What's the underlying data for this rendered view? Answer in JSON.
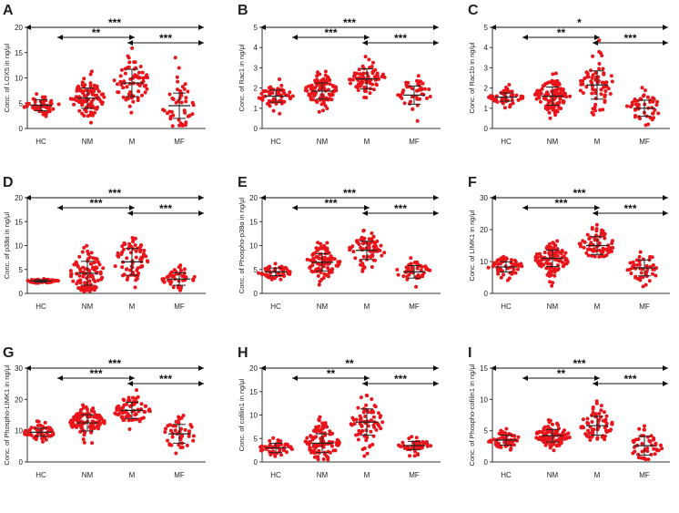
{
  "figure": {
    "colors": {
      "dot": "#e8151b",
      "axis": "#333333",
      "text": "#222222",
      "bracket": "#111111"
    }
  },
  "chart_data": [
    {
      "panel": "A",
      "type": "scatter",
      "title": "",
      "ylabel": "Conc. of LOX5 in ng/μl",
      "xlabel": "",
      "categories": [
        "HC",
        "NM",
        "M",
        "MF"
      ],
      "ylim": [
        0,
        20
      ],
      "yticks": [
        "0",
        "5",
        "10",
        "15",
        "20"
      ],
      "series": [
        {
          "name": "HC",
          "n": 55,
          "mean": 4.6,
          "sd": 1.1
        },
        {
          "name": "NM",
          "n": 100,
          "mean": 6.0,
          "sd": 2.0
        },
        {
          "name": "M",
          "n": 70,
          "mean": 9.0,
          "sd": 2.7
        },
        {
          "name": "MF",
          "n": 45,
          "mean": 4.5,
          "sd": 2.5
        }
      ],
      "comparisons": [
        {
          "from": "HC",
          "to": "MF",
          "label": "***"
        },
        {
          "from": "NM",
          "to": "M",
          "label": "**"
        },
        {
          "from": "M",
          "to": "MF",
          "label": "***"
        }
      ]
    },
    {
      "panel": "B",
      "type": "scatter",
      "title": "",
      "ylabel": "Conc. of Rac1 in ng/μl",
      "xlabel": "",
      "categories": [
        "HC",
        "NM",
        "M",
        "MF"
      ],
      "ylim": [
        0,
        5
      ],
      "yticks": [
        "0",
        "1",
        "2",
        "3",
        "4",
        "5"
      ],
      "series": [
        {
          "name": "HC",
          "n": 55,
          "mean": 1.6,
          "sd": 0.3
        },
        {
          "name": "NM",
          "n": 100,
          "mean": 1.85,
          "sd": 0.4
        },
        {
          "name": "M",
          "n": 70,
          "mean": 2.45,
          "sd": 0.5
        },
        {
          "name": "MF",
          "n": 45,
          "mean": 1.65,
          "sd": 0.45
        }
      ],
      "comparisons": [
        {
          "from": "HC",
          "to": "MF",
          "label": "***"
        },
        {
          "from": "NM",
          "to": "M",
          "label": "***"
        },
        {
          "from": "M",
          "to": "MF",
          "label": "***"
        }
      ]
    },
    {
      "panel": "C",
      "type": "scatter",
      "title": "",
      "ylabel": "Conc. of Rac1b in ng/μl",
      "xlabel": "",
      "categories": [
        "HC",
        "NM",
        "M",
        "MF"
      ],
      "ylim": [
        0,
        5
      ],
      "yticks": [
        "0",
        "1",
        "2",
        "3",
        "4",
        "5"
      ],
      "series": [
        {
          "name": "HC",
          "n": 55,
          "mean": 1.55,
          "sd": 0.2
        },
        {
          "name": "NM",
          "n": 100,
          "mean": 1.6,
          "sd": 0.45
        },
        {
          "name": "M",
          "n": 70,
          "mean": 2.15,
          "sd": 0.7
        },
        {
          "name": "MF",
          "n": 45,
          "mean": 1.0,
          "sd": 0.4
        }
      ],
      "comparisons": [
        {
          "from": "HC",
          "to": "MF",
          "label": "*"
        },
        {
          "from": "NM",
          "to": "M",
          "label": "**"
        },
        {
          "from": "M",
          "to": "MF",
          "label": "***"
        }
      ]
    },
    {
      "panel": "D",
      "type": "scatter",
      "title": "",
      "ylabel": "Conc. of p38α in ng/μl",
      "xlabel": "",
      "categories": [
        "HC",
        "NM",
        "M",
        "MF"
      ],
      "ylim": [
        0,
        20
      ],
      "yticks": [
        "0",
        "5",
        "10",
        "15",
        "20"
      ],
      "series": [
        {
          "name": "HC",
          "n": 55,
          "mean": 2.6,
          "sd": 0.25
        },
        {
          "name": "NM",
          "n": 100,
          "mean": 4.2,
          "sd": 2.5
        },
        {
          "name": "M",
          "n": 70,
          "mean": 6.6,
          "sd": 2.8
        },
        {
          "name": "MF",
          "n": 45,
          "mean": 3.0,
          "sd": 1.3
        }
      ],
      "comparisons": [
        {
          "from": "HC",
          "to": "MF",
          "label": "***"
        },
        {
          "from": "NM",
          "to": "M",
          "label": "***"
        },
        {
          "from": "M",
          "to": "MF",
          "label": "***"
        }
      ]
    },
    {
      "panel": "E",
      "type": "scatter",
      "title": "",
      "ylabel": "Conc. of Phospho-p38α in ng/μl",
      "xlabel": "",
      "categories": [
        "HC",
        "NM",
        "M",
        "MF"
      ],
      "ylim": [
        0,
        20
      ],
      "yticks": [
        "0",
        "5",
        "10",
        "15",
        "20"
      ],
      "series": [
        {
          "name": "HC",
          "n": 55,
          "mean": 4.5,
          "sd": 0.8
        },
        {
          "name": "NM",
          "n": 100,
          "mean": 6.5,
          "sd": 1.8
        },
        {
          "name": "M",
          "n": 70,
          "mean": 9.0,
          "sd": 1.9
        },
        {
          "name": "MF",
          "n": 45,
          "mean": 4.5,
          "sd": 1.3
        }
      ],
      "comparisons": [
        {
          "from": "HC",
          "to": "MF",
          "label": "***"
        },
        {
          "from": "NM",
          "to": "M",
          "label": "***"
        },
        {
          "from": "M",
          "to": "MF",
          "label": "***"
        }
      ]
    },
    {
      "panel": "F",
      "type": "scatter",
      "title": "",
      "ylabel": "Conc. of LIMK1 in ng/μl",
      "xlabel": "",
      "categories": [
        "HC",
        "NM",
        "M",
        "MF"
      ],
      "ylim": [
        0,
        30
      ],
      "yticks": [
        "0",
        "10",
        "20",
        "30"
      ],
      "series": [
        {
          "name": "HC",
          "n": 55,
          "mean": 8.3,
          "sd": 1.6
        },
        {
          "name": "NM",
          "n": 100,
          "mean": 11.0,
          "sd": 2.6
        },
        {
          "name": "M",
          "n": 70,
          "mean": 15.0,
          "sd": 2.8
        },
        {
          "name": "MF",
          "n": 45,
          "mean": 8.0,
          "sd": 2.5
        }
      ],
      "comparisons": [
        {
          "from": "HC",
          "to": "MF",
          "label": "***"
        },
        {
          "from": "NM",
          "to": "M",
          "label": "***"
        },
        {
          "from": "M",
          "to": "MF",
          "label": "***"
        }
      ]
    },
    {
      "panel": "G",
      "type": "scatter",
      "title": "",
      "ylabel": "Conc. of Phospho-LIMK1 in ng/μl",
      "xlabel": "",
      "categories": [
        "HC",
        "NM",
        "M",
        "MF"
      ],
      "ylim": [
        0,
        30
      ],
      "yticks": [
        "0",
        "10",
        "20",
        "30"
      ],
      "series": [
        {
          "name": "HC",
          "n": 55,
          "mean": 9.5,
          "sd": 1.3
        },
        {
          "name": "NM",
          "n": 100,
          "mean": 12.5,
          "sd": 2.6
        },
        {
          "name": "M",
          "n": 70,
          "mean": 16.5,
          "sd": 2.6
        },
        {
          "name": "MF",
          "n": 45,
          "mean": 9.0,
          "sd": 3.0
        }
      ],
      "comparisons": [
        {
          "from": "HC",
          "to": "MF",
          "label": "***"
        },
        {
          "from": "NM",
          "to": "M",
          "label": "***"
        },
        {
          "from": "M",
          "to": "MF",
          "label": "***"
        }
      ]
    },
    {
      "panel": "H",
      "type": "scatter",
      "title": "",
      "ylabel": "Conc. of cofilin1 in ng/μl",
      "xlabel": "",
      "categories": [
        "HC",
        "NM",
        "M",
        "MF"
      ],
      "ylim": [
        0,
        20
      ],
      "yticks": [
        "0",
        "5",
        "10",
        "15",
        "20"
      ],
      "series": [
        {
          "name": "HC",
          "n": 55,
          "mean": 3.0,
          "sd": 1.0
        },
        {
          "name": "NM",
          "n": 100,
          "mean": 4.0,
          "sd": 2.0
        },
        {
          "name": "M",
          "n": 70,
          "mean": 8.5,
          "sd": 2.8
        },
        {
          "name": "MF",
          "n": 45,
          "mean": 3.5,
          "sd": 0.9
        }
      ],
      "comparisons": [
        {
          "from": "HC",
          "to": "MF",
          "label": "**"
        },
        {
          "from": "NM",
          "to": "M",
          "label": "**"
        },
        {
          "from": "M",
          "to": "MF",
          "label": "***"
        }
      ]
    },
    {
      "panel": "I",
      "type": "scatter",
      "title": "",
      "ylabel": "Conc. of Phospho-cofilin1 in ng/μl",
      "xlabel": "",
      "categories": [
        "HC",
        "NM",
        "M",
        "MF"
      ],
      "ylim": [
        0,
        15
      ],
      "yticks": [
        "0",
        "5",
        "10",
        "15"
      ],
      "series": [
        {
          "name": "HC",
          "n": 55,
          "mean": 3.5,
          "sd": 0.8
        },
        {
          "name": "NM",
          "n": 100,
          "mean": 4.2,
          "sd": 1.0
        },
        {
          "name": "M",
          "n": 70,
          "mean": 5.8,
          "sd": 1.5
        },
        {
          "name": "MF",
          "n": 45,
          "mean": 2.6,
          "sd": 1.5
        }
      ],
      "comparisons": [
        {
          "from": "HC",
          "to": "MF",
          "label": "***"
        },
        {
          "from": "NM",
          "to": "M",
          "label": "**"
        },
        {
          "from": "M",
          "to": "MF",
          "label": "***"
        }
      ]
    }
  ]
}
